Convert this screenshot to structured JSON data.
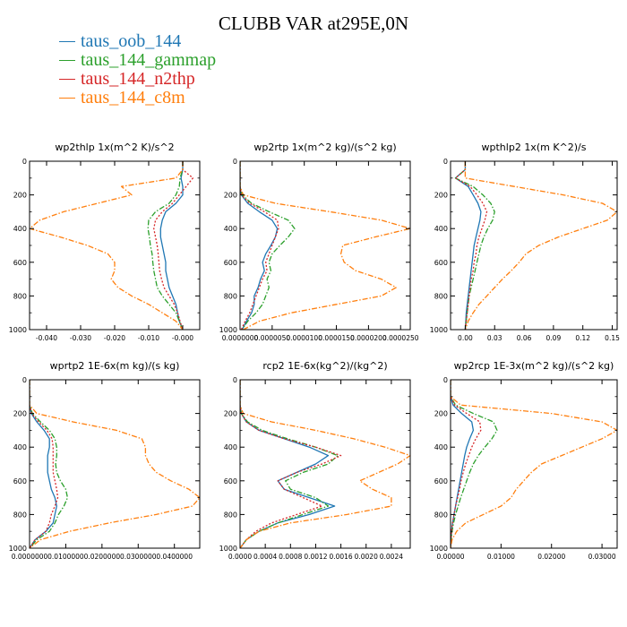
{
  "title": "CLUBB VAR at295E,0N",
  "legend": [
    {
      "label": "taus_oob_144",
      "color": "#1f77b4",
      "dash": "solid"
    },
    {
      "label": "taus_144_gammap",
      "color": "#2ca02c",
      "dash": "dashdot"
    },
    {
      "label": "taus_144_n2thp",
      "color": "#d62728",
      "dash": "dotted"
    },
    {
      "label": "taus_144_c8m",
      "color": "#ff7f0e",
      "dash": "dashdot"
    }
  ],
  "chart_data": [
    {
      "type": "line",
      "title": "wp2thlp  1x(m^2 K)/s^2",
      "xlim": [
        -0.045,
        0.005
      ],
      "xticks": [
        -0.04,
        -0.03,
        -0.02,
        -0.01,
        0.0
      ],
      "xtick_labels": [
        "-0.040",
        "-0.030",
        "-0.020",
        "-0.010",
        "-0.000"
      ],
      "ylim": [
        1000,
        0
      ],
      "yticks": [
        0,
        200,
        400,
        600,
        800,
        1000
      ],
      "ytick_labels": [
        "0",
        "200",
        "400",
        "600",
        "800",
        "1000"
      ],
      "y": [
        0,
        50,
        100,
        150,
        200,
        250,
        300,
        350,
        400,
        450,
        500,
        550,
        600,
        650,
        700,
        750,
        800,
        850,
        900,
        950,
        1000
      ],
      "series": [
        {
          "name": "taus_oob_144",
          "values": [
            0,
            0,
            -0.0005,
            0.0,
            0.0,
            -0.002,
            -0.005,
            -0.006,
            -0.0065,
            -0.0065,
            -0.006,
            -0.0055,
            -0.005,
            -0.005,
            -0.0045,
            -0.004,
            -0.003,
            -0.002,
            -0.0015,
            -0.001,
            0
          ]
        },
        {
          "name": "taus_144_gammap",
          "values": [
            0,
            0,
            -0.0008,
            -0.001,
            -0.002,
            -0.004,
            -0.008,
            -0.01,
            -0.0102,
            -0.0098,
            -0.0095,
            -0.009,
            -0.0088,
            -0.0085,
            -0.008,
            -0.0075,
            -0.006,
            -0.004,
            -0.002,
            -0.001,
            0
          ]
        },
        {
          "name": "taus_144_n2thp",
          "values": [
            0,
            0,
            0.003,
            0.001,
            -0.001,
            -0.003,
            -0.006,
            -0.008,
            -0.0085,
            -0.008,
            -0.0075,
            -0.0072,
            -0.007,
            -0.0068,
            -0.0062,
            -0.0055,
            -0.004,
            -0.0025,
            -0.0015,
            -0.0008,
            0
          ]
        },
        {
          "name": "taus_144_c8m",
          "values": [
            0,
            0,
            -0.002,
            -0.018,
            -0.015,
            -0.025,
            -0.035,
            -0.042,
            -0.045,
            -0.036,
            -0.028,
            -0.022,
            -0.02,
            -0.02,
            -0.021,
            -0.019,
            -0.015,
            -0.01,
            -0.006,
            -0.002,
            0
          ]
        }
      ]
    },
    {
      "type": "line",
      "title": "wp2rtp  1x(m^2 kg)/(s^2 kg)",
      "xlim": [
        0,
        2.65e-05
      ],
      "xticks": [
        0,
        5e-06,
        1e-05,
        1.5e-05,
        2e-05,
        2.5e-05
      ],
      "xtick_labels": [
        "0.0000000",
        "0.0000050",
        "0.0000100",
        "0.0000150",
        "0.0000200",
        "0.0000250"
      ],
      "ylim": [
        1000,
        0
      ],
      "yticks": [
        0,
        200,
        400,
        600,
        800,
        1000
      ],
      "ytick_labels": [
        "0",
        "200",
        "400",
        "600",
        "800",
        "1000"
      ],
      "y": [
        0,
        50,
        100,
        150,
        200,
        250,
        300,
        350,
        400,
        450,
        500,
        550,
        600,
        650,
        700,
        750,
        800,
        850,
        900,
        950,
        1000
      ],
      "series": [
        {
          "name": "taus_oob_144",
          "values": [
            0,
            0,
            0,
            0,
            2e-07,
            1.2e-06,
            3e-06,
            5e-06,
            5.8e-06,
            5.5e-06,
            4.8e-06,
            4e-06,
            3.5e-06,
            3.8e-06,
            3.2e-06,
            2.8e-06,
            2.2e-06,
            2.2e-06,
            1.8e-06,
            1e-06,
            3e-07
          ]
        },
        {
          "name": "taus_144_gammap",
          "values": [
            0,
            0,
            0,
            0,
            3e-07,
            1.8e-06,
            4.5e-06,
            7.5e-06,
            8.5e-06,
            7.5e-06,
            6.2e-06,
            5e-06,
            4.5e-06,
            4.8e-06,
            4.2e-06,
            4.5e-06,
            4e-06,
            3.5e-06,
            2.5e-06,
            1.2e-06,
            3e-07
          ]
        },
        {
          "name": "taus_144_n2thp",
          "values": [
            0,
            0,
            0,
            0,
            2e-07,
            1.5e-06,
            3.8e-06,
            5.8e-06,
            6e-06,
            5.5e-06,
            5e-06,
            4.5e-06,
            4e-06,
            4.2e-06,
            3.5e-06,
            3e-06,
            2.5e-06,
            2e-06,
            1.5e-06,
            8e-07,
            2e-07
          ]
        },
        {
          "name": "taus_144_c8m",
          "values": [
            0,
            0,
            0,
            0,
            5e-07,
            5.5e-06,
            1.4e-05,
            2.2e-05,
            2.65e-05,
            2.1e-05,
            1.6e-05,
            1.57e-05,
            1.62e-05,
            1.8e-05,
            2.2e-05,
            2.43e-05,
            2.2e-05,
            1.5e-05,
            8e-06,
            3e-06,
            5e-07
          ]
        }
      ]
    },
    {
      "type": "line",
      "title": "wpthlp2  1x(m K^2)/s",
      "xlim": [
        -0.015,
        0.155
      ],
      "xticks": [
        0.0,
        0.03,
        0.06,
        0.09,
        0.12,
        0.15
      ],
      "xtick_labels": [
        "0.00",
        "0.03",
        "0.06",
        "0.09",
        "0.12",
        "0.15"
      ],
      "ylim": [
        1000,
        0
      ],
      "yticks": [
        0,
        200,
        400,
        600,
        800,
        1000
      ],
      "ytick_labels": [
        "0",
        "200",
        "400",
        "600",
        "800",
        "1000"
      ],
      "y": [
        0,
        50,
        100,
        150,
        200,
        250,
        300,
        350,
        400,
        450,
        500,
        550,
        600,
        650,
        700,
        750,
        800,
        850,
        900,
        950,
        1000
      ],
      "series": [
        {
          "name": "taus_oob_144",
          "values": [
            0,
            0,
            -0.01,
            0.003,
            0.008,
            0.013,
            0.016,
            0.015,
            0.013,
            0.011,
            0.009,
            0.008,
            0.007,
            0.006,
            0.005,
            0.004,
            0.003,
            0.002,
            0.001,
            0.0005,
            0
          ]
        },
        {
          "name": "taus_144_gammap",
          "values": [
            0,
            0,
            -0.01,
            0.008,
            0.018,
            0.026,
            0.03,
            0.028,
            0.023,
            0.019,
            0.016,
            0.014,
            0.012,
            0.01,
            0.008,
            0.006,
            0.004,
            0.003,
            0.002,
            0.001,
            0
          ]
        },
        {
          "name": "taus_144_n2thp",
          "values": [
            0,
            0,
            -0.01,
            0.005,
            0.012,
            0.018,
            0.022,
            0.02,
            0.017,
            0.014,
            0.012,
            0.011,
            0.009,
            0.008,
            0.006,
            0.005,
            0.004,
            0.003,
            0.002,
            0.001,
            0
          ]
        },
        {
          "name": "taus_144_c8m",
          "values": [
            0,
            0,
            0.0,
            0.05,
            0.1,
            0.14,
            0.155,
            0.145,
            0.12,
            0.095,
            0.075,
            0.062,
            0.055,
            0.047,
            0.038,
            0.03,
            0.022,
            0.014,
            0.008,
            0.003,
            0
          ]
        }
      ]
    },
    {
      "type": "line",
      "title": "wprtp2  1E-6x(m kg)/(s kg)",
      "xlim": [
        0,
        0.047
      ],
      "xticks": [
        0,
        0.01,
        0.02,
        0.03,
        0.04
      ],
      "xtick_labels": [
        "0.0000000",
        "0.0100000",
        "0.0200000",
        "0.0300000",
        "0.0400000"
      ],
      "ylim": [
        1000,
        0
      ],
      "yticks": [
        0,
        200,
        400,
        600,
        800,
        1000
      ],
      "ytick_labels": [
        "0",
        "200",
        "400",
        "600",
        "800",
        "1000"
      ],
      "y": [
        0,
        50,
        100,
        150,
        200,
        250,
        300,
        350,
        400,
        450,
        500,
        550,
        600,
        650,
        700,
        750,
        800,
        850,
        900,
        950,
        1000
      ],
      "series": [
        {
          "name": "taus_oob_144",
          "values": [
            0,
            0,
            0,
            0,
            0.0005,
            0.002,
            0.004,
            0.0055,
            0.0055,
            0.005,
            0.005,
            0.005,
            0.0055,
            0.006,
            0.007,
            0.0075,
            0.007,
            0.0065,
            0.0045,
            0.0015,
            0
          ]
        },
        {
          "name": "taus_144_gammap",
          "values": [
            0,
            0,
            0,
            0,
            0.0008,
            0.003,
            0.0055,
            0.007,
            0.0075,
            0.0075,
            0.0072,
            0.0075,
            0.0085,
            0.01,
            0.0105,
            0.0095,
            0.008,
            0.007,
            0.0055,
            0.002,
            0
          ]
        },
        {
          "name": "taus_144_n2thp",
          "values": [
            0,
            0,
            0,
            0,
            0.0006,
            0.0025,
            0.0048,
            0.0062,
            0.0065,
            0.0065,
            0.0065,
            0.0065,
            0.007,
            0.0075,
            0.0078,
            0.007,
            0.006,
            0.0055,
            0.0045,
            0.0015,
            0
          ]
        },
        {
          "name": "taus_144_c8m",
          "values": [
            0,
            0,
            0,
            0,
            0.002,
            0.012,
            0.024,
            0.031,
            0.032,
            0.032,
            0.033,
            0.035,
            0.039,
            0.044,
            0.047,
            0.045,
            0.035,
            0.022,
            0.011,
            0.003,
            0
          ]
        }
      ]
    },
    {
      "type": "line",
      "title": "rcp2  1E-6x(kg^2)/(kg^2)",
      "xlim": [
        0,
        0.0027
      ],
      "xticks": [
        0,
        0.0004,
        0.0008,
        0.0012,
        0.0016,
        0.002,
        0.0024
      ],
      "xtick_labels": [
        "0.0000",
        "0.0004",
        "0.0008",
        "0.0012",
        "0.0016",
        "0.0020",
        "0.0024"
      ],
      "ylim": [
        1000,
        0
      ],
      "yticks": [
        0,
        200,
        400,
        600,
        800,
        1000
      ],
      "ytick_labels": [
        "0",
        "200",
        "400",
        "600",
        "800",
        "1000"
      ],
      "y": [
        0,
        50,
        100,
        150,
        200,
        250,
        300,
        350,
        400,
        450,
        500,
        550,
        600,
        650,
        700,
        750,
        800,
        850,
        900,
        950,
        1000
      ],
      "series": [
        {
          "name": "taus_oob_144",
          "values": [
            0,
            0,
            0,
            0,
            2e-05,
            0.0001,
            0.0003,
            0.0007,
            0.0011,
            0.0014,
            0.0012,
            0.0009,
            0.0006,
            0.0007,
            0.0011,
            0.0015,
            0.0011,
            0.0006,
            0.0003,
            0.0001,
            0
          ]
        },
        {
          "name": "taus_144_gammap",
          "values": [
            0,
            0,
            0,
            0,
            2e-05,
            0.00012,
            0.00035,
            0.00075,
            0.0012,
            0.00155,
            0.0014,
            0.001,
            0.00072,
            0.0008,
            0.0012,
            0.0014,
            0.001,
            0.0006,
            0.0003,
            0.0001,
            0
          ]
        },
        {
          "name": "taus_144_n2thp",
          "values": [
            0,
            0,
            0,
            0,
            2e-05,
            0.0001,
            0.0003,
            0.0007,
            0.0012,
            0.0016,
            0.0013,
            0.0009,
            0.0006,
            0.0007,
            0.001,
            0.0013,
            0.0009,
            0.0005,
            0.00025,
            0.0001,
            0
          ]
        },
        {
          "name": "taus_144_c8m",
          "values": [
            0,
            0,
            0,
            0,
            5e-05,
            0.0005,
            0.0012,
            0.0018,
            0.0023,
            0.0027,
            0.0025,
            0.0022,
            0.0019,
            0.0021,
            0.0024,
            0.0024,
            0.0017,
            0.0008,
            0.0003,
            0.0001,
            0
          ]
        }
      ]
    },
    {
      "type": "line",
      "title": "wp2rcp  1E-3x(m^2 kg)/(s^2 kg)",
      "xlim": [
        0,
        0.033
      ],
      "xticks": [
        0.0,
        0.01,
        0.02,
        0.03
      ],
      "xtick_labels": [
        "0.00000",
        "0.01000",
        "0.02000",
        "0.03000"
      ],
      "ylim": [
        1000,
        0
      ],
      "yticks": [
        0,
        200,
        400,
        600,
        800,
        1000
      ],
      "ytick_labels": [
        "0",
        "200",
        "400",
        "600",
        "800",
        "1000"
      ],
      "y": [
        0,
        50,
        100,
        150,
        200,
        250,
        300,
        350,
        400,
        450,
        500,
        550,
        600,
        650,
        700,
        750,
        800,
        850,
        900,
        950,
        1000
      ],
      "series": [
        {
          "name": "taus_oob_144",
          "values": [
            0,
            0,
            0,
            0.0005,
            0.0022,
            0.0042,
            0.0045,
            0.0038,
            0.0032,
            0.0028,
            0.0025,
            0.0022,
            0.0019,
            0.0016,
            0.0013,
            0.001,
            0.0007,
            0.0004,
            0.0002,
            0.0001,
            0
          ]
        },
        {
          "name": "taus_144_gammap",
          "values": [
            0,
            0,
            0,
            0.001,
            0.0045,
            0.0085,
            0.0092,
            0.0082,
            0.0068,
            0.0055,
            0.0045,
            0.0038,
            0.0032,
            0.0026,
            0.002,
            0.0015,
            0.001,
            0.0006,
            0.0003,
            0.0001,
            0
          ]
        },
        {
          "name": "taus_144_n2thp",
          "values": [
            0,
            0,
            0,
            0.0008,
            0.0032,
            0.0058,
            0.006,
            0.005,
            0.0042,
            0.0036,
            0.003,
            0.0025,
            0.0021,
            0.0018,
            0.0014,
            0.001,
            0.0007,
            0.0004,
            0.0002,
            0.0001,
            0
          ]
        },
        {
          "name": "taus_144_c8m",
          "values": [
            0,
            0,
            0,
            0.002,
            0.02,
            0.03,
            0.033,
            0.03,
            0.026,
            0.022,
            0.018,
            0.016,
            0.0145,
            0.013,
            0.012,
            0.01,
            0.0065,
            0.003,
            0.0012,
            0.0003,
            0
          ]
        }
      ]
    }
  ]
}
